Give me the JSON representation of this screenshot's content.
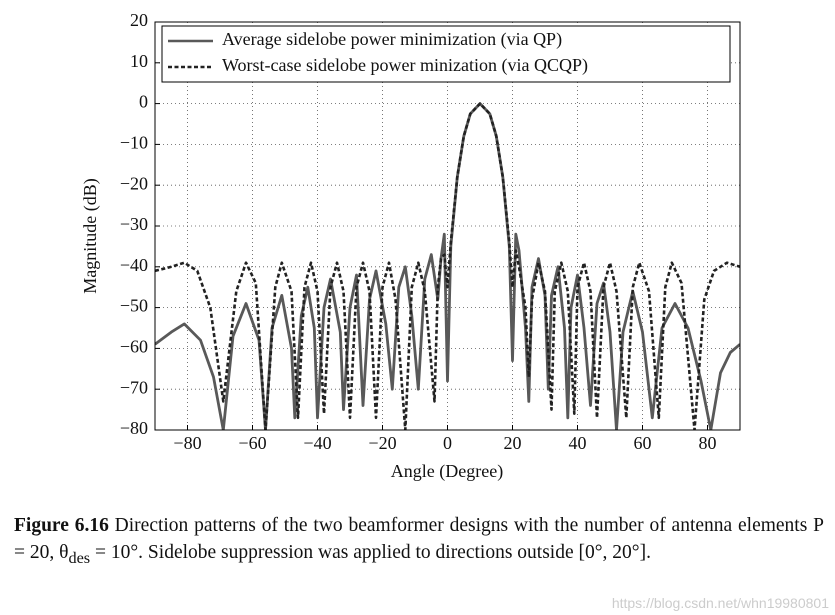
{
  "chart_data": {
    "type": "line",
    "xlabel": "Angle (Degree)",
    "ylabel": "Magnitude (dB)",
    "xlim": [
      -90,
      90
    ],
    "ylim": [
      -80,
      20
    ],
    "xticks": [
      {
        "value": -80,
        "label": "−80"
      },
      {
        "value": -60,
        "label": "−60"
      },
      {
        "value": -40,
        "label": "−40"
      },
      {
        "value": -20,
        "label": "−20"
      },
      0,
      20,
      40,
      60,
      80
    ],
    "yticks": [
      20,
      10,
      0,
      {
        "value": -10,
        "label": "−10"
      },
      {
        "value": -20,
        "label": "−20"
      },
      {
        "value": -30,
        "label": "−30"
      },
      {
        "value": -40,
        "label": "−40"
      },
      {
        "value": -50,
        "label": "−50"
      },
      {
        "value": -60,
        "label": "−60"
      },
      {
        "value": -70,
        "label": "−70"
      },
      {
        "value": -80,
        "label": "−80"
      }
    ],
    "grid": true,
    "legend": "upper left",
    "series": [
      {
        "name": "Average sidelobe power minimization (via QP)",
        "color": "#595959",
        "style": "solid",
        "x": [
          -90,
          -85,
          -81,
          -76,
          -72,
          -69,
          -66,
          -62,
          -58,
          -56,
          -54,
          -51,
          -48,
          -47,
          -45,
          -43,
          -41,
          -40,
          -38,
          -36,
          -33,
          -32,
          -30,
          -28,
          -26,
          -24,
          -22,
          -19,
          -17,
          -15,
          -13,
          -11,
          -9,
          -7,
          -5,
          -3,
          -2,
          -1,
          0,
          1,
          3,
          5,
          7,
          10,
          13,
          15,
          17,
          19,
          20,
          21,
          22,
          24,
          25,
          26,
          28,
          30,
          31,
          32,
          34,
          36,
          37,
          38,
          40,
          42,
          44,
          46,
          48,
          50,
          52,
          54,
          57,
          60,
          63,
          66,
          70,
          74,
          78,
          81,
          84,
          87,
          90
        ],
        "values": [
          -59,
          -56,
          -54,
          -58,
          -67,
          -80,
          -57,
          -49,
          -58,
          -80,
          -55,
          -47,
          -60,
          -77,
          -52,
          -45,
          -55,
          -77,
          -50,
          -43,
          -56,
          -75,
          -50,
          -42,
          -74,
          -48,
          -41,
          -54,
          -70,
          -45,
          -40,
          -52,
          -70,
          -43,
          -37,
          -48,
          -38,
          -32,
          -68,
          -35,
          -18,
          -8,
          -2.5,
          0,
          -2.5,
          -8,
          -18,
          -35,
          -63,
          -32,
          -36,
          -55,
          -73,
          -45,
          -38,
          -47,
          -70,
          -47,
          -40,
          -55,
          -77,
          -50,
          -42,
          -55,
          -74,
          -49,
          -44,
          -56,
          -80,
          -56,
          -46,
          -56,
          -77,
          -55,
          -49,
          -55,
          -68,
          -80,
          -66,
          -61,
          -59
        ]
      },
      {
        "name": "Worst-case sidelobe power minization (via QCQP)",
        "color": "#222222",
        "style": "dashed",
        "x": [
          -90,
          -85,
          -81,
          -77,
          -73,
          -69,
          -65,
          -62,
          -59,
          -56,
          -53,
          -51,
          -48,
          -46,
          -44,
          -42,
          -40,
          -38,
          -36,
          -34,
          -32,
          -30,
          -28,
          -26,
          -24,
          -22,
          -20,
          -18,
          -16,
          -13,
          -11,
          -9,
          -7,
          -4,
          -3,
          -2,
          -1,
          0,
          1,
          3,
          5,
          7,
          10,
          13,
          15,
          17,
          19,
          20,
          21,
          22,
          24,
          25,
          26,
          28,
          30,
          32,
          33,
          35,
          37,
          39,
          40,
          42,
          44,
          46,
          48,
          50,
          52,
          55,
          57,
          59,
          62,
          65,
          67,
          69,
          72,
          76,
          79,
          82,
          86,
          90
        ],
        "values": [
          -41,
          -40,
          -39,
          -41,
          -50,
          -73,
          -46,
          -39,
          -44,
          -80,
          -45,
          -39,
          -46,
          -77,
          -45,
          -39,
          -46,
          -76,
          -45,
          -39,
          -46,
          -77,
          -45,
          -39,
          -46,
          -77,
          -45,
          -39,
          -48,
          -80,
          -45,
          -39,
          -46,
          -73,
          -45,
          -38,
          -37,
          -45,
          -34,
          -18,
          -8,
          -2.5,
          0,
          -2.5,
          -8,
          -18,
          -34,
          -45,
          -36,
          -40,
          -50,
          -67,
          -48,
          -39,
          -46,
          -75,
          -46,
          -39,
          -46,
          -76,
          -45,
          -39,
          -46,
          -77,
          -45,
          -39,
          -46,
          -77,
          -45,
          -39,
          -46,
          -77,
          -45,
          -39,
          -44,
          -80,
          -48,
          -41,
          -39,
          -40
        ]
      }
    ]
  },
  "caption": {
    "label": "Figure 6.16",
    "text1": "Direction patterns of the two beamformer designs with the number of antenna elements P = 20, θ",
    "sub": "des",
    "text2": " = 10°. Sidelobe suppression was applied to directions outside [0°, 20°]."
  },
  "watermark": "https://blog.csdn.net/whn19980801"
}
